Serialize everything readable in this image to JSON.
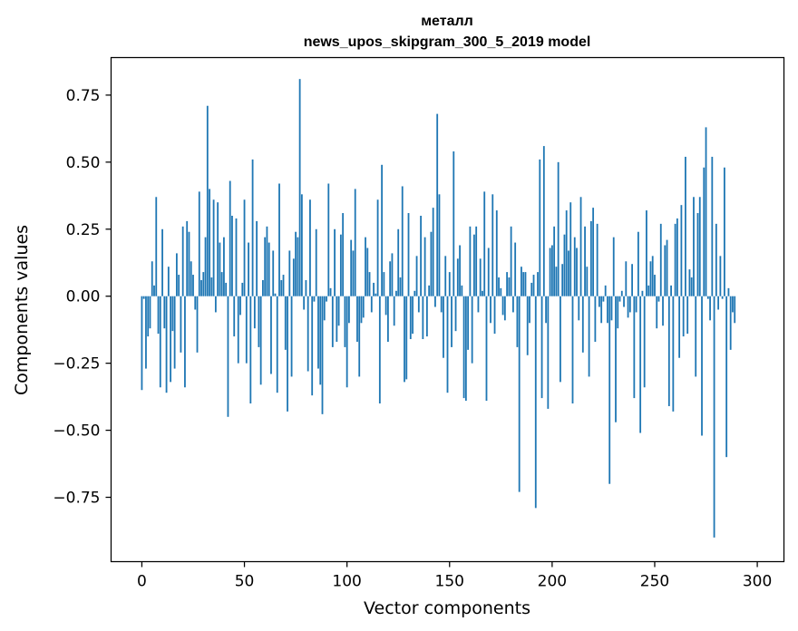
{
  "chart_data": {
    "type": "bar",
    "title": "металл",
    "subtitle": "news_upos_skipgram_300_5_2019 model",
    "xlabel": "Vector components",
    "ylabel": "Components values",
    "xlim": [
      -15,
      313
    ],
    "ylim": [
      -0.99,
      0.89
    ],
    "xticks": [
      0,
      50,
      100,
      150,
      200,
      250,
      300
    ],
    "yticks": [
      -0.75,
      -0.5,
      -0.25,
      0.0,
      0.25,
      0.5,
      0.75
    ],
    "ytick_labels": [
      "−0.75",
      "−0.50",
      "−0.25",
      "0.00",
      "0.25",
      "0.50",
      "0.75"
    ],
    "bar_color": "#1f77b4",
    "values": [
      -0.35,
      -0.01,
      -0.27,
      -0.15,
      -0.12,
      0.13,
      0.04,
      0.37,
      -0.14,
      -0.34,
      0.25,
      -0.12,
      -0.36,
      0.11,
      -0.32,
      -0.13,
      -0.27,
      0.16,
      0.08,
      -0.21,
      0.26,
      -0.34,
      0.28,
      0.24,
      0.13,
      0.08,
      -0.05,
      -0.21,
      0.39,
      0.06,
      0.09,
      0.22,
      0.71,
      0.4,
      0.07,
      0.36,
      -0.06,
      0.35,
      0.2,
      0.09,
      0.22,
      0.05,
      -0.45,
      0.43,
      0.3,
      -0.15,
      0.29,
      -0.25,
      -0.07,
      0.05,
      0.36,
      -0.25,
      0.2,
      -0.4,
      0.51,
      -0.12,
      0.28,
      -0.19,
      -0.33,
      0.06,
      0.22,
      0.26,
      0.2,
      -0.29,
      0.17,
      0.01,
      -0.36,
      0.42,
      0.06,
      0.08,
      -0.2,
      -0.43,
      0.17,
      -0.3,
      0.14,
      0.24,
      0.22,
      0.81,
      0.38,
      -0.05,
      0.06,
      -0.28,
      0.36,
      -0.37,
      -0.02,
      0.25,
      -0.27,
      -0.33,
      -0.44,
      -0.09,
      -0.02,
      0.42,
      0.03,
      -0.19,
      0.25,
      -0.17,
      -0.11,
      0.23,
      0.31,
      -0.19,
      -0.34,
      -0.1,
      0.21,
      0.17,
      0.4,
      -0.17,
      -0.3,
      -0.1,
      -0.08,
      0.22,
      0.18,
      0.09,
      -0.06,
      0.05,
      0.01,
      0.36,
      -0.4,
      0.49,
      0.09,
      -0.07,
      -0.17,
      0.13,
      0.16,
      -0.11,
      0.02,
      0.25,
      0.07,
      0.41,
      -0.32,
      -0.31,
      0.31,
      -0.16,
      -0.14,
      0.02,
      0.15,
      -0.06,
      0.3,
      -0.16,
      0.22,
      -0.15,
      0.04,
      0.24,
      0.33,
      -0.04,
      0.68,
      0.38,
      -0.06,
      -0.23,
      0.15,
      -0.36,
      0.09,
      -0.19,
      0.54,
      -0.13,
      0.14,
      0.19,
      0.04,
      -0.38,
      -0.39,
      -0.2,
      0.26,
      -0.25,
      0.23,
      0.26,
      -0.06,
      0.14,
      0.02,
      0.39,
      -0.39,
      0.18,
      -0.1,
      0.38,
      -0.14,
      0.32,
      0.07,
      0.03,
      -0.07,
      -0.09,
      0.09,
      0.07,
      0.26,
      -0.06,
      0.2,
      -0.19,
      -0.73,
      0.11,
      0.09,
      0.09,
      -0.22,
      -0.1,
      0.05,
      0.08,
      -0.79,
      0.09,
      0.51,
      -0.38,
      0.56,
      -0.1,
      -0.42,
      0.18,
      0.19,
      0.26,
      0.11,
      0.5,
      -0.32,
      0.12,
      0.23,
      0.32,
      0.17,
      0.35,
      -0.4,
      0.22,
      0.18,
      -0.09,
      0.37,
      -0.21,
      0.26,
      0.11,
      -0.3,
      0.28,
      0.33,
      -0.17,
      0.27,
      -0.04,
      -0.1,
      -0.02,
      0.04,
      -0.1,
      -0.7,
      -0.09,
      0.22,
      -0.47,
      -0.12,
      -0.02,
      0.02,
      -0.04,
      0.13,
      -0.08,
      -0.06,
      0.12,
      -0.38,
      -0.06,
      0.24,
      -0.51,
      0.02,
      -0.34,
      0.32,
      0.04,
      0.13,
      0.15,
      0.08,
      -0.12,
      -0.02,
      0.27,
      -0.11,
      0.19,
      0.21,
      -0.41,
      0.04,
      -0.43,
      0.27,
      0.29,
      -0.23,
      0.34,
      -0.15,
      0.52,
      -0.14,
      0.1,
      0.07,
      0.37,
      -0.3,
      0.31,
      0.37,
      -0.52,
      0.48,
      0.63,
      -0.01,
      -0.09,
      0.52,
      -0.9,
      0.27,
      -0.05,
      0.15,
      -0.01,
      0.48,
      -0.6,
      0.03,
      -0.2,
      -0.06,
      -0.1
    ]
  }
}
